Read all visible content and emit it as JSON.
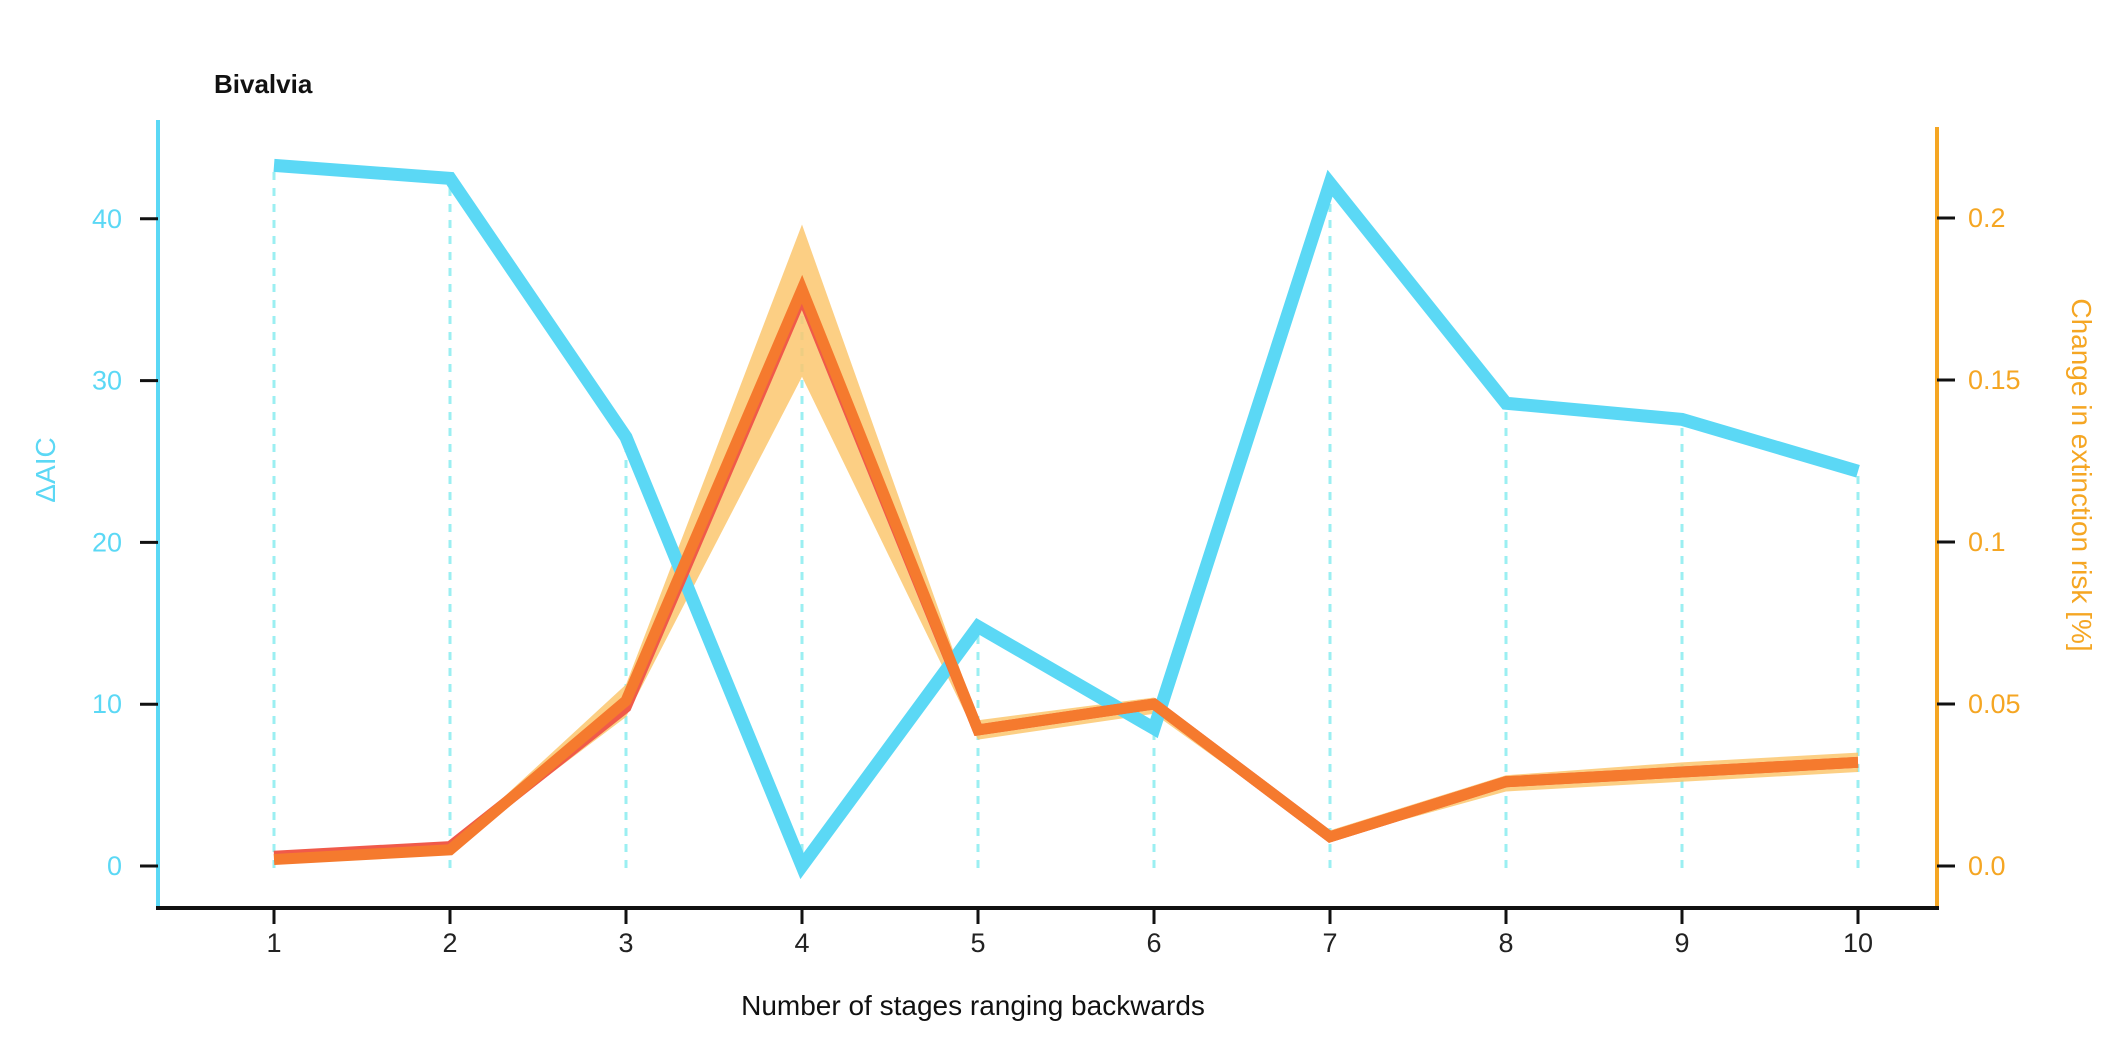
{
  "chart_data": {
    "type": "line",
    "title": "Bivalvia",
    "xlabel": "Number of stages ranging backwards",
    "ylabel_left": "ΔAIC",
    "ylabel_right": "Change in extinction risk [%]",
    "x": [
      1,
      2,
      3,
      4,
      5,
      6,
      7,
      8,
      9,
      10
    ],
    "x_tick_labels": [
      "1",
      "2",
      "3",
      "4",
      "5",
      "6",
      "7",
      "8",
      "9",
      "10"
    ],
    "ylim_left": [
      -2.5,
      46
    ],
    "ylim_right": [
      -0.0125,
      0.23
    ],
    "y_ticks_left": [
      0,
      10,
      20,
      30,
      40
    ],
    "y_tick_labels_left": [
      "0",
      "10",
      "20",
      "30",
      "40"
    ],
    "y_ticks_right": [
      0,
      0.05,
      0.1,
      0.15,
      0.2
    ],
    "y_tick_labels_right": [
      "0.0",
      "0.05",
      "0.1",
      "0.15",
      "0.2"
    ],
    "grid": "dashed vertical lines at each x",
    "series": [
      {
        "axis": "left",
        "color": "#5BD8F5",
        "values": [
          43.3,
          42.5,
          26.5,
          0.0,
          14.8,
          8.5,
          42.2,
          28.6,
          27.6,
          24.4
        ]
      },
      {
        "axis": "right",
        "color": "#F57A2E",
        "values": [
          0.002,
          0.005,
          0.051,
          0.178,
          0.042,
          0.05,
          0.009,
          0.026,
          0.029,
          0.032
        ],
        "band_lower": [
          0.002,
          0.005,
          0.046,
          0.151,
          0.039,
          0.047,
          0.008,
          0.023,
          0.026,
          0.029
        ],
        "band_upper": [
          0.003,
          0.006,
          0.056,
          0.198,
          0.045,
          0.052,
          0.011,
          0.028,
          0.032,
          0.035
        ],
        "band_color": "#FBC76E"
      },
      {
        "axis": "right",
        "color": "#F05A4A",
        "values": [
          0.003,
          0.006,
          0.049,
          0.176,
          0.042,
          0.05,
          0.009,
          0.026,
          0.029,
          0.032
        ]
      }
    ],
    "colors": {
      "left_axis": "#5BD8F5",
      "right_axis": "#F5A623",
      "x_axis": "#111111",
      "grid": "#9BEFF2"
    }
  }
}
